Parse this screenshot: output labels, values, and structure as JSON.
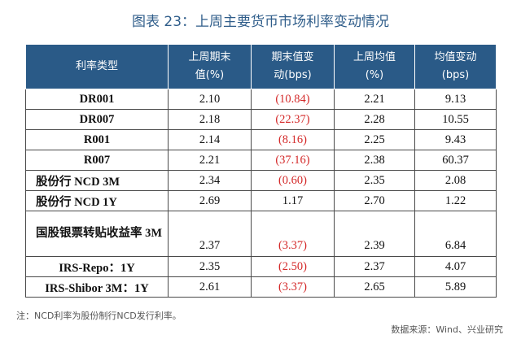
{
  "title": "图表 23：上周主要货币市场利率变动情况",
  "table": {
    "headers": [
      [
        "利率类型"
      ],
      [
        "上周期末",
        "值(%)"
      ],
      [
        "期末值变",
        "动(bps)"
      ],
      [
        "上周均值",
        "(%)"
      ],
      [
        "均值变动",
        "(bps)"
      ]
    ],
    "rows": [
      {
        "name": "DR001",
        "end_value": "2.10",
        "end_change": "(10.84)",
        "avg": "2.21",
        "avg_change": "9.13"
      },
      {
        "name": "DR007",
        "end_value": "2.18",
        "end_change": "(22.37)",
        "avg": "2.28",
        "avg_change": "10.55"
      },
      {
        "name": "R001",
        "end_value": "2.14",
        "end_change": "(8.16)",
        "avg": "2.25",
        "avg_change": "9.43"
      },
      {
        "name": "R007",
        "end_value": "2.21",
        "end_change": "(37.16)",
        "avg": "2.38",
        "avg_change": "60.37"
      },
      {
        "name": "股份行 NCD 3M",
        "end_value": "2.34",
        "end_change": "(0.60)",
        "avg": "2.35",
        "avg_change": "2.08"
      },
      {
        "name": "股份行 NCD 1Y",
        "end_value": "2.69",
        "end_change": "1.17",
        "avg": "2.70",
        "avg_change": "1.22"
      },
      {
        "name": "国股银票转贴收益率 3M",
        "end_value": "2.37",
        "end_change": "(3.37)",
        "avg": "2.39",
        "avg_change": "6.84"
      },
      {
        "name": "IRS-Repo：1Y",
        "end_value": "2.35",
        "end_change": "(2.50)",
        "avg": "2.37",
        "avg_change": "4.07"
      },
      {
        "name": "IRS-Shibor 3M：1Y",
        "end_value": "2.61",
        "end_change": "(3.37)",
        "avg": "2.65",
        "avg_change": "5.89"
      }
    ]
  },
  "footnote": "注：NCD利率为股份制行NCD发行利率。",
  "source": "数据来源：Wind、兴业研究",
  "colors": {
    "header_bg": "#2a5a87",
    "title": "#2f5d8a",
    "negative": "#d42a2a"
  }
}
